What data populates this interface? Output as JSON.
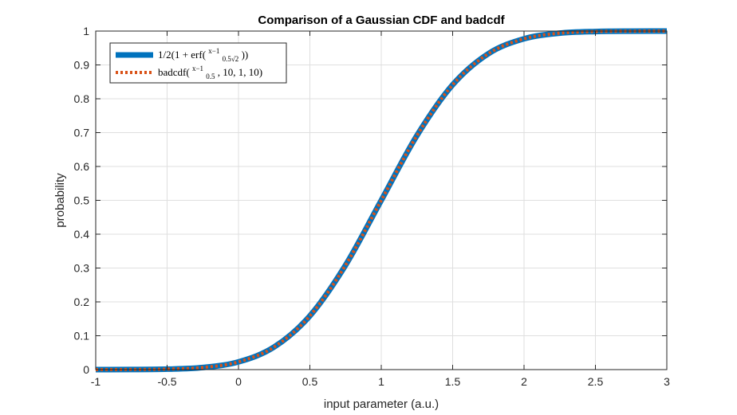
{
  "chart_data": {
    "type": "line",
    "title": "Comparison of a Gaussian CDF and badcdf",
    "xlabel": "input parameter (a.u.)",
    "ylabel": "probability",
    "xlim": [
      -1,
      3
    ],
    "ylim": [
      0,
      1
    ],
    "xticks": [
      "-1",
      "-0.5",
      "0",
      "0.5",
      "1",
      "1.5",
      "2",
      "2.5",
      "3"
    ],
    "yticks": [
      "0",
      "0.1",
      "0.2",
      "0.3",
      "0.4",
      "0.5",
      "0.6",
      "0.7",
      "0.8",
      "0.9",
      "1"
    ],
    "grid": true,
    "legend_position": "top-left",
    "x": [
      -1,
      -0.75,
      -0.5,
      -0.25,
      0,
      0.25,
      0.5,
      0.75,
      1,
      1.25,
      1.5,
      1.75,
      2,
      2.25,
      2.5,
      2.75,
      3
    ],
    "series": [
      {
        "name": "½(1 + erf((x−1)/(0.5√2)))",
        "legend_prefix": "1/2(1 + erf(",
        "legend_num": "x−1",
        "legend_den": "0.5√2",
        "legend_suffix": "))",
        "color": "#0072BD",
        "style": "solid",
        "values": [
          3e-05,
          0.00023,
          0.00135,
          0.0062,
          0.0228,
          0.0668,
          0.1587,
          0.3085,
          0.5,
          0.6915,
          0.8413,
          0.9332,
          0.9772,
          0.9938,
          0.99865,
          0.99977,
          0.99997
        ]
      },
      {
        "name": "badcdf((x−1)/0.5, 10, 1, 10)",
        "legend_prefix": "badcdf(",
        "legend_num": "x−1",
        "legend_den": "0.5",
        "legend_suffix": ", 10, 1, 10)",
        "color": "#D95319",
        "style": "dotted",
        "values": [
          3e-05,
          0.00023,
          0.00135,
          0.0062,
          0.0228,
          0.0668,
          0.1587,
          0.3085,
          0.5,
          0.6915,
          0.8413,
          0.9332,
          0.9772,
          0.9938,
          0.99865,
          0.99977,
          0.99997
        ]
      }
    ]
  }
}
